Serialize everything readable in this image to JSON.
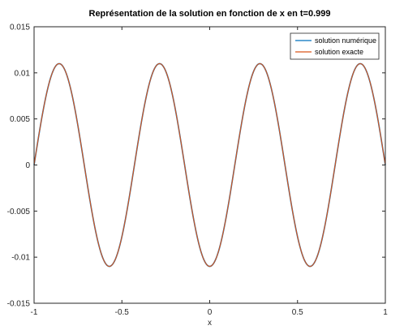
{
  "chart_data": {
    "type": "line",
    "title": "Représentation de la solution en fonction de x en t=0.999",
    "xlabel": "x",
    "ylabel": "",
    "xlim": [
      -1,
      1
    ],
    "ylim": [
      -0.015,
      0.015
    ],
    "xticks": [
      -1,
      -0.5,
      0,
      0.5,
      1
    ],
    "xtick_labels": [
      "-1",
      "-0.5",
      "0",
      "0.5",
      "1"
    ],
    "yticks": [
      -0.015,
      -0.01,
      -0.005,
      0,
      0.005,
      0.01,
      0.015
    ],
    "ytick_labels": [
      "-0.015",
      "-0.01",
      "-0.005",
      "0",
      "0.005",
      "0.01",
      "0.015"
    ],
    "grid": false,
    "legend_position": "top-right",
    "function": "0.011 * sin(3.5 * pi * (x + 1))",
    "series": [
      {
        "name": "solution numérique",
        "color": "#0072bd",
        "amplitude": 0.011,
        "x": [
          -1,
          -0.857,
          -0.714,
          -0.571,
          -0.429,
          -0.286,
          -0.143,
          0,
          0.143,
          0.286,
          0.429,
          0.571,
          0.714,
          0.857,
          1
        ],
        "y": [
          0,
          0.011,
          0,
          -0.011,
          0,
          0.011,
          0,
          -0.011,
          0,
          0.011,
          0,
          -0.011,
          0,
          0.011,
          0
        ]
      },
      {
        "name": "solution exacte",
        "color": "#d95319",
        "amplitude": 0.011,
        "x": [
          -1,
          -0.857,
          -0.714,
          -0.571,
          -0.429,
          -0.286,
          -0.143,
          0,
          0.143,
          0.286,
          0.429,
          0.571,
          0.714,
          0.857,
          1
        ],
        "y": [
          0,
          0.011,
          0,
          -0.011,
          0,
          0.011,
          0,
          -0.011,
          0,
          0.011,
          0,
          -0.011,
          0,
          0.011,
          0
        ]
      }
    ]
  }
}
